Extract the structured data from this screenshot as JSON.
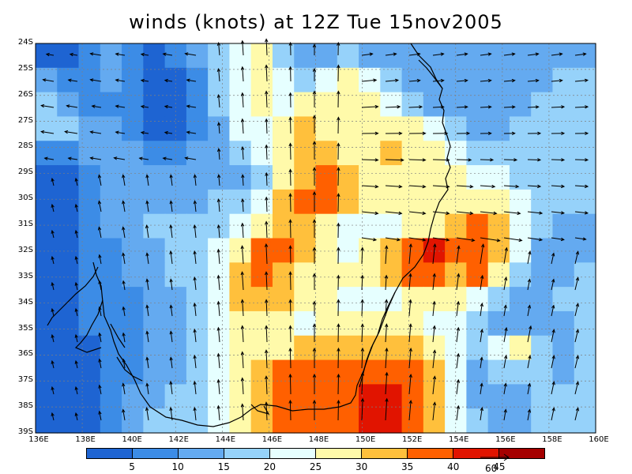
{
  "title": "winds (knots) at 12Z Tue 15nov2005",
  "latitude_labels": [
    "24S",
    "25S",
    "26S",
    "27S",
    "28S",
    "29S",
    "30S",
    "31S",
    "32S",
    "33S",
    "34S",
    "35S",
    "36S",
    "37S",
    "38S",
    "39S"
  ],
  "longitude_labels": [
    "136E",
    "138E",
    "140E",
    "142E",
    "144E",
    "146E",
    "148E",
    "150E",
    "152E",
    "154E",
    "156E",
    "158E",
    "160E"
  ],
  "colorbar": {
    "levels": [
      "5",
      "10",
      "15",
      "20",
      "25",
      "30",
      "35",
      "40",
      "45"
    ],
    "colors": [
      "#1e64d2",
      "#3c8ce6",
      "#64aaf0",
      "#96d2fa",
      "#e6ffff",
      "#fffaaa",
      "#ffc03c",
      "#ff6000",
      "#e11400",
      "#a50000"
    ]
  },
  "reference_vector": {
    "label": "60"
  },
  "wind_speed_knots": [
    [
      5,
      5,
      10,
      15,
      10,
      5,
      10,
      15,
      20,
      25,
      30,
      20,
      15,
      15,
      20,
      15,
      15,
      15,
      15,
      15,
      15,
      15,
      15,
      15,
      15,
      15
    ],
    [
      15,
      10,
      10,
      15,
      10,
      5,
      5,
      10,
      20,
      25,
      30,
      25,
      20,
      25,
      30,
      25,
      20,
      15,
      15,
      15,
      15,
      15,
      15,
      15,
      20,
      20
    ],
    [
      20,
      15,
      10,
      10,
      10,
      5,
      5,
      10,
      20,
      25,
      30,
      25,
      30,
      30,
      30,
      30,
      25,
      20,
      15,
      15,
      15,
      15,
      15,
      20,
      20,
      20
    ],
    [
      20,
      20,
      15,
      15,
      10,
      5,
      5,
      10,
      15,
      25,
      25,
      30,
      35,
      30,
      30,
      30,
      30,
      30,
      25,
      20,
      15,
      15,
      20,
      20,
      20,
      20
    ],
    [
      10,
      10,
      15,
      15,
      15,
      10,
      10,
      15,
      15,
      20,
      25,
      30,
      35,
      35,
      30,
      30,
      35,
      30,
      30,
      25,
      20,
      20,
      20,
      20,
      20,
      20
    ],
    [
      5,
      5,
      10,
      15,
      15,
      15,
      15,
      15,
      15,
      15,
      20,
      30,
      35,
      40,
      35,
      30,
      30,
      30,
      30,
      30,
      25,
      25,
      20,
      20,
      20,
      20
    ],
    [
      5,
      5,
      10,
      15,
      15,
      15,
      15,
      15,
      20,
      20,
      25,
      35,
      40,
      40,
      35,
      30,
      30,
      30,
      30,
      30,
      30,
      30,
      25,
      20,
      20,
      20
    ],
    [
      5,
      5,
      10,
      15,
      15,
      20,
      20,
      20,
      20,
      25,
      30,
      35,
      35,
      30,
      25,
      25,
      25,
      30,
      30,
      35,
      40,
      35,
      25,
      20,
      15,
      15
    ],
    [
      5,
      5,
      10,
      10,
      15,
      15,
      20,
      20,
      25,
      30,
      40,
      40,
      35,
      30,
      25,
      30,
      35,
      40,
      45,
      40,
      40,
      35,
      25,
      15,
      15,
      15
    ],
    [
      5,
      5,
      10,
      10,
      15,
      15,
      20,
      20,
      25,
      35,
      40,
      35,
      30,
      30,
      30,
      30,
      35,
      40,
      40,
      35,
      40,
      30,
      20,
      15,
      15,
      20
    ],
    [
      5,
      5,
      10,
      10,
      10,
      15,
      15,
      20,
      25,
      35,
      35,
      35,
      30,
      30,
      25,
      25,
      25,
      30,
      30,
      30,
      25,
      20,
      15,
      15,
      20,
      20
    ],
    [
      5,
      5,
      10,
      10,
      10,
      15,
      15,
      20,
      25,
      30,
      30,
      30,
      25,
      30,
      30,
      30,
      30,
      30,
      25,
      25,
      20,
      15,
      15,
      15,
      15,
      20
    ],
    [
      5,
      5,
      5,
      10,
      10,
      15,
      15,
      20,
      25,
      30,
      30,
      30,
      35,
      35,
      35,
      35,
      35,
      35,
      30,
      25,
      20,
      25,
      30,
      20,
      15,
      20
    ],
    [
      5,
      5,
      5,
      10,
      10,
      15,
      15,
      20,
      25,
      30,
      35,
      40,
      40,
      40,
      40,
      40,
      40,
      40,
      35,
      25,
      15,
      20,
      20,
      20,
      15,
      20
    ],
    [
      5,
      5,
      5,
      10,
      15,
      15,
      20,
      20,
      25,
      30,
      35,
      40,
      40,
      40,
      40,
      45,
      45,
      40,
      35,
      25,
      15,
      15,
      15,
      20,
      20,
      20
    ],
    [
      5,
      5,
      5,
      10,
      15,
      20,
      20,
      20,
      25,
      30,
      35,
      40,
      40,
      40,
      40,
      45,
      45,
      40,
      35,
      25,
      20,
      15,
      15,
      20,
      20,
      20
    ]
  ]
}
